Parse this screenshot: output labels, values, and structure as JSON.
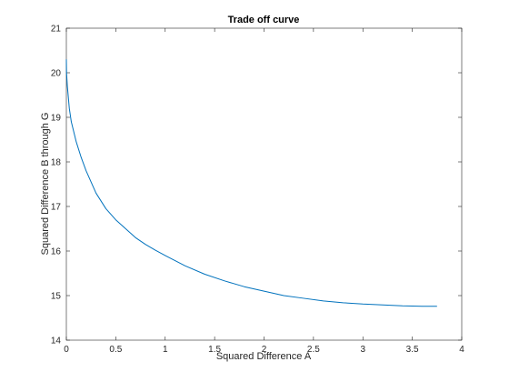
{
  "chart_data": {
    "type": "line",
    "title": "Trade off curve",
    "xlabel": "Squared Difference A",
    "ylabel": "Squared Difference B through G",
    "xlim": [
      0,
      4
    ],
    "ylim": [
      14,
      21
    ],
    "xticks": [
      0,
      0.5,
      1,
      1.5,
      2,
      2.5,
      3,
      3.5,
      4
    ],
    "xtick_labels": [
      "0",
      "0.5",
      "1",
      "1.5",
      "2",
      "2.5",
      "3",
      "3.5",
      "4"
    ],
    "yticks": [
      14,
      15,
      16,
      17,
      18,
      19,
      20,
      21
    ],
    "ytick_labels": [
      "14",
      "15",
      "16",
      "17",
      "18",
      "19",
      "20",
      "21"
    ],
    "grid": false,
    "series": [
      {
        "color": "#0072BD",
        "x": [
          0.0,
          0.002,
          0.01,
          0.03,
          0.05,
          0.1,
          0.15,
          0.2,
          0.3,
          0.4,
          0.5,
          0.6,
          0.7,
          0.8,
          0.9,
          1.0,
          1.2,
          1.4,
          1.6,
          1.8,
          2.0,
          2.2,
          2.4,
          2.6,
          2.8,
          3.0,
          3.2,
          3.4,
          3.6,
          3.75
        ],
        "y": [
          20.3,
          20.0,
          19.7,
          19.2,
          18.9,
          18.45,
          18.1,
          17.8,
          17.3,
          16.95,
          16.7,
          16.5,
          16.3,
          16.15,
          16.02,
          15.9,
          15.67,
          15.48,
          15.33,
          15.2,
          15.1,
          15.0,
          14.94,
          14.88,
          14.84,
          14.81,
          14.79,
          14.77,
          14.76,
          14.76
        ]
      }
    ]
  }
}
